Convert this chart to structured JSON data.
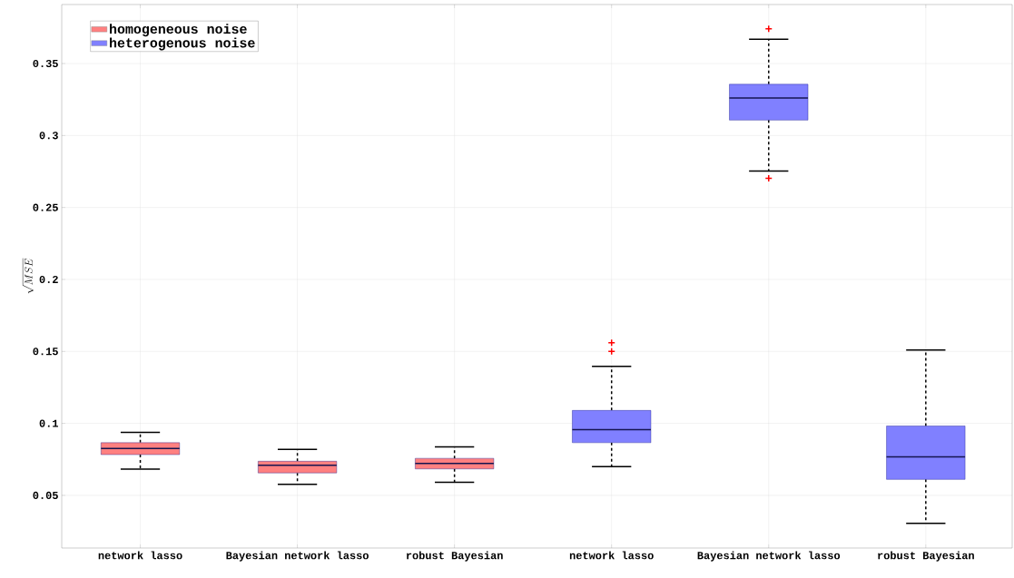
{
  "chart_data": {
    "type": "box",
    "ylabel": "\\sqrt{MSE}",
    "categories": [
      "network lasso",
      "Bayesian network lasso",
      "robust Bayesian",
      "network lasso",
      "Bayesian network lasso",
      "robust Bayesian"
    ],
    "series": [
      {
        "name": "homogeneous noise",
        "color": "#ff8080",
        "boxes": [
          {
            "low": 0.0682,
            "q1": 0.0783,
            "median": 0.0826,
            "q3": 0.0866,
            "high": 0.0937
          },
          {
            "low": 0.0576,
            "q1": 0.0656,
            "median": 0.0709,
            "q3": 0.0737,
            "high": 0.082
          },
          {
            "low": 0.0591,
            "q1": 0.0684,
            "median": 0.0722,
            "q3": 0.0757,
            "high": 0.0836
          },
          null,
          null,
          null
        ]
      },
      {
        "name": "heterogenous noise",
        "color": "#8080ff",
        "boxes": [
          null,
          null,
          null,
          {
            "low": 0.0699,
            "q1": 0.0866,
            "median": 0.0957,
            "q3": 0.109,
            "high": 0.1396,
            "outliers": [
              0.156,
              0.15
            ]
          },
          {
            "low": 0.2753,
            "q1": 0.3107,
            "median": 0.326,
            "q3": 0.3356,
            "high": 0.3669,
            "outliers": [
              0.3742,
              0.2703
            ]
          },
          {
            "low": 0.0306,
            "q1": 0.0611,
            "median": 0.0767,
            "q3": 0.0982,
            "high": 0.1509
          }
        ]
      }
    ],
    "ylim": [
      0.0134,
      0.391
    ],
    "yticks": [
      0.05,
      0.1,
      0.15,
      0.2,
      0.25,
      0.3,
      0.35
    ],
    "grid": true,
    "legend": "top left"
  }
}
